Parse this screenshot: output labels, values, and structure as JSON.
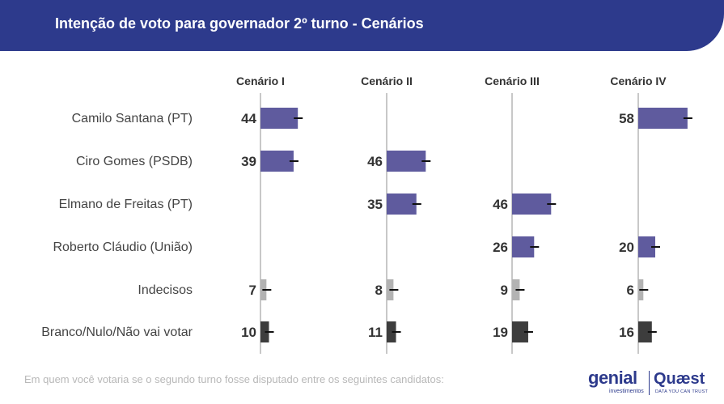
{
  "header": {
    "title": "Intenção de voto para governador 2º turno - Cenários"
  },
  "footnote": "Em quem você votaria se o segundo turno fosse disputado entre os seguintes candidatos:",
  "logos": {
    "genial": "genial",
    "genial_sub": "investimentos",
    "quaest": "Quæst",
    "quaest_sub": "DATA YOU CAN TRUST"
  },
  "colors": {
    "header": "#2d3a8c",
    "candidate_bar": "#5f5b9e",
    "undecided_bar": "#b3b3b3",
    "blank_bar": "#3d3d3d",
    "axis_line": "#c8c8c8"
  },
  "chart_data": {
    "type": "bar",
    "orientation": "horizontal",
    "title": "Intenção de voto para governador 2º turno - Cenários",
    "categories": [
      "Camilo Santana (PT)",
      "Ciro Gomes (PSDB)",
      "Elmano de Freitas (PT)",
      "Roberto Cláudio (União)",
      "Indecisos",
      "Branco/Nulo/Não vai votar"
    ],
    "series": [
      {
        "name": "Cenário I",
        "values": [
          44,
          39,
          null,
          null,
          7,
          10
        ]
      },
      {
        "name": "Cenário II",
        "values": [
          null,
          46,
          35,
          null,
          8,
          11
        ]
      },
      {
        "name": "Cenário III",
        "values": [
          null,
          null,
          46,
          26,
          9,
          19
        ]
      },
      {
        "name": "Cenário IV",
        "values": [
          58,
          null,
          null,
          20,
          6,
          16
        ]
      }
    ],
    "error_bars": true
  }
}
